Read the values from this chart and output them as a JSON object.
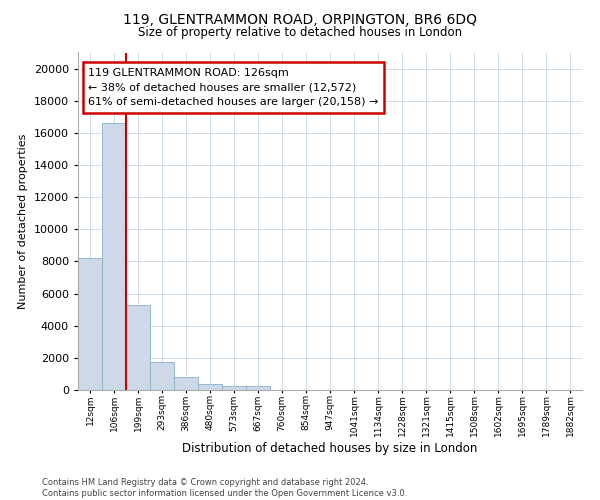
{
  "title": "119, GLENTRAMMON ROAD, ORPINGTON, BR6 6DQ",
  "subtitle": "Size of property relative to detached houses in London",
  "xlabel": "Distribution of detached houses by size in London",
  "ylabel": "Number of detached properties",
  "categories": [
    "12sqm",
    "106sqm",
    "199sqm",
    "293sqm",
    "386sqm",
    "480sqm",
    "573sqm",
    "667sqm",
    "760sqm",
    "854sqm",
    "947sqm",
    "1041sqm",
    "1134sqm",
    "1228sqm",
    "1321sqm",
    "1415sqm",
    "1508sqm",
    "1602sqm",
    "1695sqm",
    "1789sqm",
    "1882sqm"
  ],
  "values": [
    8200,
    16600,
    5300,
    1750,
    800,
    350,
    230,
    230,
    0,
    0,
    0,
    0,
    0,
    0,
    0,
    0,
    0,
    0,
    0,
    0,
    0
  ],
  "bar_fill": "#cdd9e8",
  "bar_edge": "#8aafc8",
  "vline_pos": 1.5,
  "vline_color": "#cc0000",
  "ann_title": "119 GLENTRAMMON ROAD: 126sqm",
  "ann_line1": "← 38% of detached houses are smaller (12,572)",
  "ann_line2": "61% of semi-detached houses are larger (20,158) →",
  "ann_box_edge": "#cc0000",
  "ylim": [
    0,
    21000
  ],
  "yticks": [
    0,
    2000,
    4000,
    6000,
    8000,
    10000,
    12000,
    14000,
    16000,
    18000,
    20000
  ],
  "footer1": "Contains HM Land Registry data © Crown copyright and database right 2024.",
  "footer2": "Contains public sector information licensed under the Open Government Licence v3.0.",
  "bg": "#ffffff",
  "grid_color": "#b8cfe0"
}
